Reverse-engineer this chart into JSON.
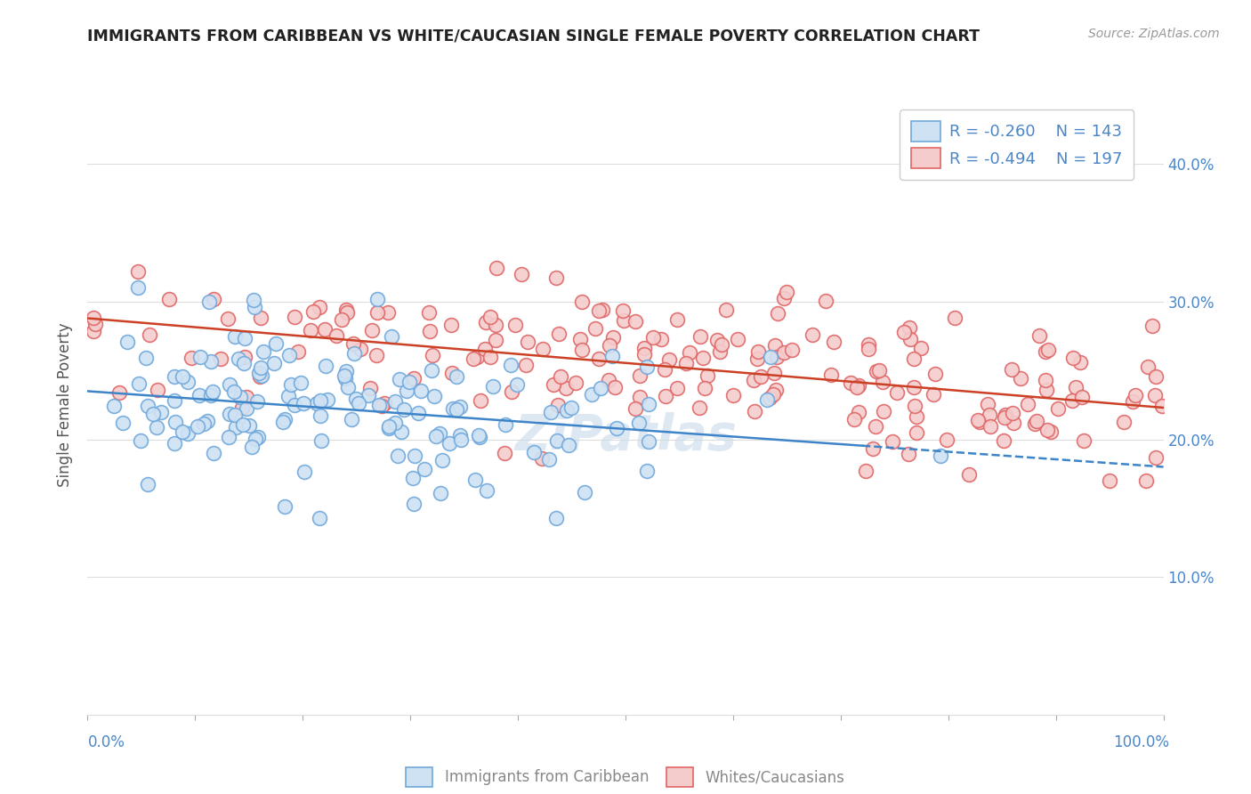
{
  "title": "IMMIGRANTS FROM CARIBBEAN VS WHITE/CAUCASIAN SINGLE FEMALE POVERTY CORRELATION CHART",
  "source": "Source: ZipAtlas.com",
  "ylabel": "Single Female Poverty",
  "y_ticks": [
    0.1,
    0.2,
    0.3,
    0.4
  ],
  "y_tick_labels": [
    "10.0%",
    "20.0%",
    "30.0%",
    "40.0%"
  ],
  "legend_label_blue": "Immigrants from Caribbean",
  "legend_label_pink": "Whites/Caucasians",
  "legend_R_blue": "-0.260",
  "legend_N_blue": "143",
  "legend_R_pink": "-0.494",
  "legend_N_pink": "197",
  "blue_edge_color": "#6fa8dc",
  "pink_edge_color": "#e06666",
  "blue_fill_color": "#cfe2f3",
  "pink_fill_color": "#f4cccc",
  "blue_line_color": "#3d85c8",
  "pink_line_color": "#cc4125",
  "watermark": "ZiPatlas",
  "N_blue": 143,
  "N_pink": 197,
  "R_blue": -0.26,
  "R_pink": -0.494,
  "x_range": [
    0.0,
    1.0
  ],
  "y_range": [
    0.0,
    0.45
  ],
  "blue_intercept": 0.235,
  "blue_slope": -0.055,
  "pink_intercept": 0.288,
  "pink_slope": -0.065,
  "seed_blue": 42,
  "seed_pink": 77
}
